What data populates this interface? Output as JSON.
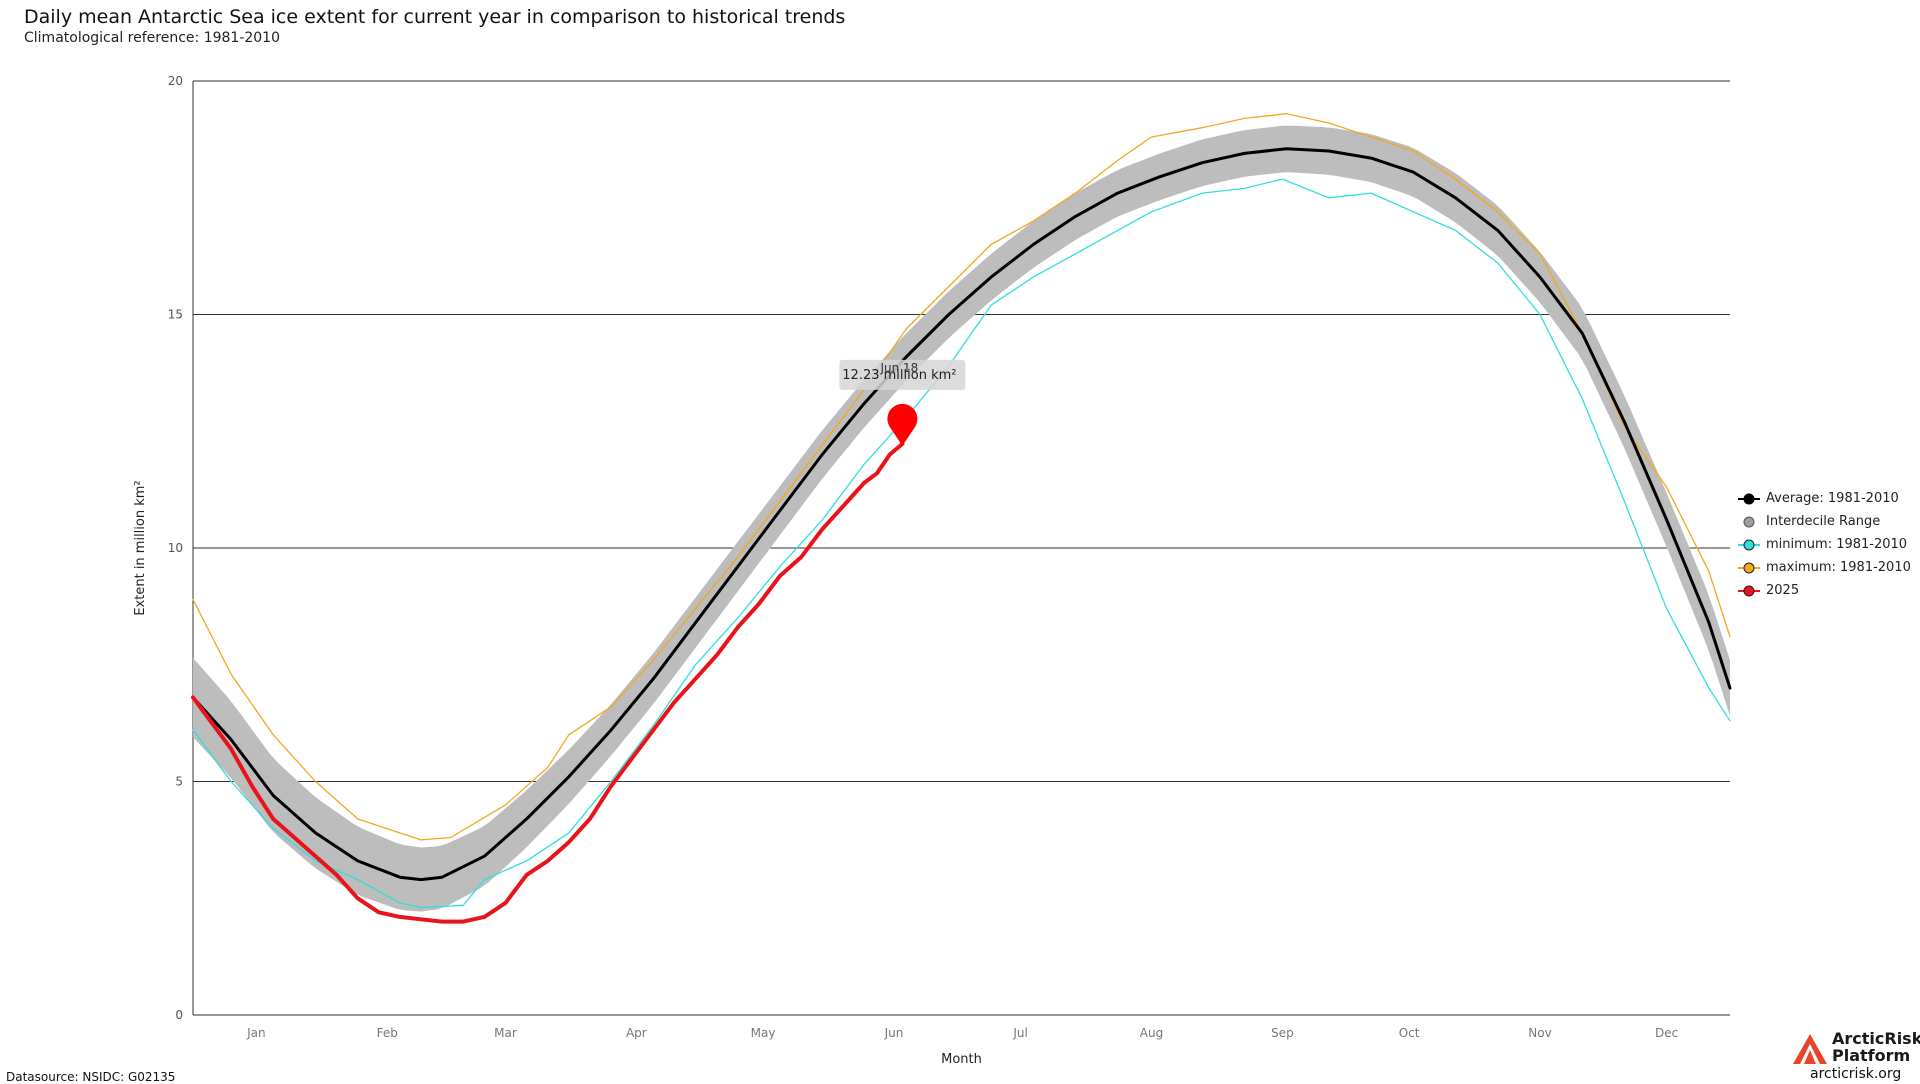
{
  "chart_data": {
    "type": "line",
    "title": "Daily mean Antarctic Sea ice extent for current year in comparison to historical trends",
    "subtitle": "Climatological reference: 1981-2010",
    "xlabel": "Month",
    "ylabel": "Extent in million km²",
    "ylim": [
      0,
      20
    ],
    "yticks": [
      0,
      5,
      10,
      15,
      20
    ],
    "xlim": [
      1,
      365
    ],
    "months": [
      "Jan",
      "Feb",
      "Mar",
      "Apr",
      "May",
      "Jun",
      "Jul",
      "Aug",
      "Sep",
      "Oct",
      "Nov",
      "Dec"
    ],
    "month_days": [
      16,
      47,
      75,
      106,
      136,
      167,
      197,
      228,
      259,
      289,
      320,
      350
    ],
    "grid": "horizontal",
    "series": [
      {
        "name": "maximum: 1981-2010",
        "color": "#f5a623",
        "points": [
          [
            1,
            8.9
          ],
          [
            10,
            7.3
          ],
          [
            20,
            6.0
          ],
          [
            30,
            5.0
          ],
          [
            40,
            4.2
          ],
          [
            55,
            3.75
          ],
          [
            62,
            3.8
          ],
          [
            75,
            4.5
          ],
          [
            85,
            5.3
          ],
          [
            90,
            6.0
          ],
          [
            100,
            6.6
          ],
          [
            110,
            7.6
          ],
          [
            120,
            8.7
          ],
          [
            130,
            9.8
          ],
          [
            140,
            11.0
          ],
          [
            150,
            12.2
          ],
          [
            160,
            13.4
          ],
          [
            170,
            14.7
          ],
          [
            180,
            15.6
          ],
          [
            190,
            16.5
          ],
          [
            200,
            17.0
          ],
          [
            210,
            17.6
          ],
          [
            220,
            18.3
          ],
          [
            228,
            18.8
          ],
          [
            240,
            19.0
          ],
          [
            250,
            19.2
          ],
          [
            260,
            19.3
          ],
          [
            270,
            19.1
          ],
          [
            280,
            18.8
          ],
          [
            290,
            18.5
          ],
          [
            300,
            17.9
          ],
          [
            310,
            17.2
          ],
          [
            320,
            16.3
          ],
          [
            330,
            14.6
          ],
          [
            340,
            12.6
          ],
          [
            350,
            11.3
          ],
          [
            360,
            9.5
          ],
          [
            365,
            8.1
          ]
        ]
      },
      {
        "name": "Average: 1981-2010",
        "color": "#000000",
        "points": [
          [
            1,
            6.8
          ],
          [
            10,
            5.9
          ],
          [
            20,
            4.7
          ],
          [
            30,
            3.9
          ],
          [
            40,
            3.3
          ],
          [
            50,
            2.95
          ],
          [
            55,
            2.9
          ],
          [
            60,
            2.95
          ],
          [
            70,
            3.4
          ],
          [
            80,
            4.2
          ],
          [
            90,
            5.1
          ],
          [
            100,
            6.1
          ],
          [
            110,
            7.2
          ],
          [
            120,
            8.4
          ],
          [
            130,
            9.6
          ],
          [
            140,
            10.8
          ],
          [
            150,
            12.0
          ],
          [
            160,
            13.1
          ],
          [
            170,
            14.1
          ],
          [
            180,
            15.0
          ],
          [
            190,
            15.8
          ],
          [
            200,
            16.5
          ],
          [
            210,
            17.1
          ],
          [
            220,
            17.6
          ],
          [
            230,
            17.95
          ],
          [
            240,
            18.25
          ],
          [
            250,
            18.45
          ],
          [
            260,
            18.55
          ],
          [
            270,
            18.5
          ],
          [
            280,
            18.35
          ],
          [
            290,
            18.05
          ],
          [
            300,
            17.5
          ],
          [
            310,
            16.8
          ],
          [
            320,
            15.8
          ],
          [
            330,
            14.6
          ],
          [
            340,
            12.7
          ],
          [
            350,
            10.6
          ],
          [
            360,
            8.4
          ],
          [
            365,
            7.0
          ]
        ]
      },
      {
        "name": "minimum: 1981-2010",
        "color": "#33dddd",
        "points": [
          [
            1,
            6.1
          ],
          [
            10,
            5.0
          ],
          [
            20,
            4.0
          ],
          [
            30,
            3.3
          ],
          [
            40,
            2.9
          ],
          [
            50,
            2.4
          ],
          [
            55,
            2.3
          ],
          [
            65,
            2.35
          ],
          [
            70,
            2.9
          ],
          [
            80,
            3.3
          ],
          [
            90,
            3.9
          ],
          [
            100,
            5.0
          ],
          [
            110,
            6.2
          ],
          [
            120,
            7.5
          ],
          [
            130,
            8.5
          ],
          [
            140,
            9.6
          ],
          [
            150,
            10.6
          ],
          [
            160,
            11.8
          ],
          [
            170,
            12.8
          ],
          [
            180,
            13.9
          ],
          [
            190,
            15.2
          ],
          [
            200,
            15.8
          ],
          [
            210,
            16.3
          ],
          [
            220,
            16.8
          ],
          [
            228,
            17.2
          ],
          [
            240,
            17.6
          ],
          [
            250,
            17.7
          ],
          [
            259,
            17.9
          ],
          [
            270,
            17.5
          ],
          [
            280,
            17.6
          ],
          [
            290,
            17.2
          ],
          [
            300,
            16.8
          ],
          [
            310,
            16.1
          ],
          [
            320,
            15.0
          ],
          [
            330,
            13.2
          ],
          [
            340,
            11.0
          ],
          [
            350,
            8.7
          ],
          [
            360,
            7.0
          ],
          [
            365,
            6.3
          ]
        ]
      },
      {
        "name": "2025",
        "color": "#e8131b",
        "points": [
          [
            1,
            6.8
          ],
          [
            10,
            5.7
          ],
          [
            15,
            4.9
          ],
          [
            20,
            4.2
          ],
          [
            25,
            3.8
          ],
          [
            30,
            3.4
          ],
          [
            35,
            3.0
          ],
          [
            40,
            2.5
          ],
          [
            45,
            2.2
          ],
          [
            50,
            2.1
          ],
          [
            55,
            2.05
          ],
          [
            60,
            2.0
          ],
          [
            65,
            2.0
          ],
          [
            70,
            2.1
          ],
          [
            75,
            2.4
          ],
          [
            80,
            3.0
          ],
          [
            85,
            3.3
          ],
          [
            90,
            3.7
          ],
          [
            95,
            4.2
          ],
          [
            100,
            4.9
          ],
          [
            105,
            5.5
          ],
          [
            110,
            6.1
          ],
          [
            115,
            6.7
          ],
          [
            120,
            7.2
          ],
          [
            125,
            7.7
          ],
          [
            130,
            8.3
          ],
          [
            135,
            8.8
          ],
          [
            140,
            9.4
          ],
          [
            145,
            9.8
          ],
          [
            150,
            10.4
          ],
          [
            155,
            10.9
          ],
          [
            160,
            11.4
          ],
          [
            163,
            11.6
          ],
          [
            166,
            12.0
          ],
          [
            169,
            12.23
          ]
        ]
      }
    ],
    "band": {
      "name": "Interdecile Range",
      "color": "#bdbdbd",
      "half_width": [
        [
          1,
          0.85
        ],
        [
          100,
          0.55
        ],
        [
          180,
          0.5
        ],
        [
          260,
          0.5
        ],
        [
          330,
          0.55
        ],
        [
          365,
          0.6
        ]
      ]
    },
    "tooltip": {
      "date": "Jun 18",
      "value": "12.23 million km²",
      "day": 169,
      "y": 12.23
    }
  },
  "legend": [
    {
      "label": "Average: 1981-2010",
      "color": "#000000"
    },
    {
      "label": "Interdecile Range",
      "color": "#bdbdbd"
    },
    {
      "label": "minimum: 1981-2010",
      "color": "#33dddd"
    },
    {
      "label": "maximum: 1981-2010",
      "color": "#f5a623"
    },
    {
      "label": "2025",
      "color": "#e8131b"
    }
  ],
  "footer": {
    "datasource": "Datasource: NSIDC: G02135",
    "logo_name_line1": "ArcticRisk",
    "logo_name_line2": "Platform",
    "logo_url": "arcticrisk.org"
  }
}
